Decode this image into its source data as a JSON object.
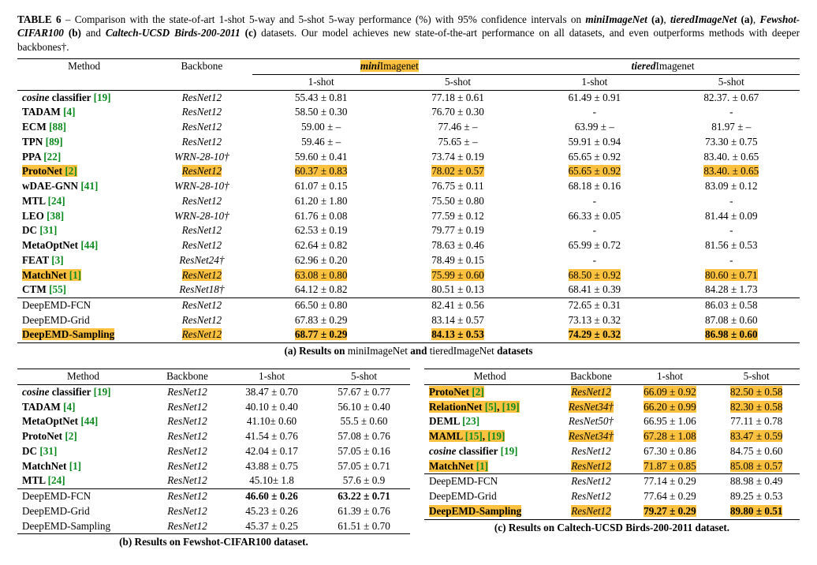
{
  "caption": {
    "label": "TABLE 6",
    "sep": " – ",
    "pre": "Comparison with the state-of-art 1-shot 5-way and 5-shot 5-way performance (%) with 95% confidence intervals on ",
    "ds1": "miniImageNet",
    "tag1": "(a)",
    "ds2": "tieredImageNet",
    "tag2": "(a)",
    "ds3": "Fewshot-CIFAR100",
    "tag3": "(b)",
    "ds4": "Caltech-UCSD Birds-200-2011",
    "tag4": "(c)",
    "post": " datasets. Our model achieves new state-of-the-art performance on all datasets, and even outperforms methods with deeper backbones†.",
    "comma": ", ",
    "and": " and "
  },
  "colors": {
    "highlight": "#fec240",
    "ref": "#0b8a1f"
  },
  "tableA": {
    "head": {
      "method": "Method",
      "backbone": "Backbone",
      "ds1_pre": "mini",
      "ds1_post": "Imagenet",
      "ds2_pre": "tiered",
      "ds2_post": "Imagenet",
      "c1": "1-shot",
      "c5": "5-shot"
    },
    "rows": [
      {
        "m_it": "cosine",
        "m_rest": " classifier ",
        "ref": "[19]",
        "bb": "ResNet12",
        "hl": false,
        "m1": "55.43 ± 0.81",
        "m5": "77.18 ± 0.61",
        "t1": "61.49 ± 0.91",
        "t5": "82.37. ± 0.67"
      },
      {
        "m_b": "TADAM ",
        "ref": "[4]",
        "bb": "ResNet12",
        "hl": false,
        "m1": "58.50 ± 0.30",
        "m5": "76.70 ± 0.30",
        "t1": "-",
        "t5": "-"
      },
      {
        "m_b": "ECM ",
        "ref": "[88]",
        "bb": "ResNet12",
        "hl": false,
        "m1": "59.00 ± –",
        "m5": "77.46 ± –",
        "t1": "63.99 ± –",
        "t5": "81.97 ± –"
      },
      {
        "m_b": "TPN ",
        "ref": "[89]",
        "bb": "ResNet12",
        "hl": false,
        "m1": "59.46 ± –",
        "m5": "75.65 ± –",
        "t1": "59.91 ± 0.94",
        "t5": "73.30 ± 0.75"
      },
      {
        "m_b": "PPA ",
        "ref": "[22]",
        "bb": "WRN-28-10†",
        "hl": false,
        "m1": "59.60 ± 0.41",
        "m5": "73.74 ± 0.19",
        "t1": "65.65 ± 0.92",
        "t5": "83.40. ± 0.65"
      },
      {
        "m_b": "ProtoNet ",
        "ref": "[2]",
        "bb": "ResNet12",
        "hl": true,
        "m1": "60.37 ± 0.83",
        "m5": "78.02 ± 0.57",
        "t1": "65.65 ± 0.92",
        "t5": "83.40. ± 0.65"
      },
      {
        "m_b": "wDAE-GNN ",
        "ref": "[41]",
        "bb": "WRN-28-10†",
        "hl": false,
        "m1": "61.07 ± 0.15",
        "m5": "76.75 ± 0.11",
        "t1": "68.18 ± 0.16",
        "t5": "83.09 ± 0.12"
      },
      {
        "m_b": "MTL ",
        "ref": "[24]",
        "bb": "ResNet12",
        "hl": false,
        "m1": "61.20 ± 1.80",
        "m5": "75.50 ± 0.80",
        "t1": "-",
        "t5": "-"
      },
      {
        "m_b": "LEO ",
        "ref": "[38]",
        "bb": "WRN-28-10†",
        "hl": false,
        "m1": "61.76 ± 0.08",
        "m5": "77.59 ± 0.12",
        "t1": "66.33 ± 0.05",
        "t5": "81.44 ± 0.09"
      },
      {
        "m_b": "DC ",
        "ref": "[31]",
        "bb": "ResNet12",
        "hl": false,
        "m1": "62.53 ± 0.19",
        "m5": "79.77 ± 0.19",
        "t1": "-",
        "t5": "-"
      },
      {
        "m_b": "MetaOptNet ",
        "ref": "[44]",
        "bb": "ResNet12",
        "hl": false,
        "m1": "62.64 ± 0.82",
        "m5": "78.63 ± 0.46",
        "t1": "65.99 ± 0.72",
        "t5": "81.56 ± 0.53"
      },
      {
        "m_b": "FEAT ",
        "ref": "[3]",
        "bb": "ResNet24†",
        "hl": false,
        "m1": "62.96 ± 0.20",
        "m5": "78.49 ± 0.15",
        "t1": "-",
        "t5": "-"
      },
      {
        "m_b": "MatchNet ",
        "ref": "[1]",
        "bb": "ResNet12",
        "hl": true,
        "m1": "63.08 ± 0.80",
        "m5": "75.99 ± 0.60",
        "t1": "68.50 ± 0.92",
        "t5": "80.60 ± 0.71"
      },
      {
        "m_b": "CTM ",
        "ref": "[55]",
        "bb": "ResNet18†",
        "hl": false,
        "m1": "64.12 ± 0.82",
        "m5": "80.51 ± 0.13",
        "t1": "68.41 ± 0.39",
        "t5": "84.28 ± 1.73"
      },
      {
        "m": "DeepEMD-FCN",
        "bb": "ResNet12",
        "hl": false,
        "sect": true,
        "m1": "66.50 ± 0.80",
        "m5": "82.41 ± 0.56",
        "t1": "72.65 ± 0.31",
        "t5": "86.03 ± 0.58"
      },
      {
        "m": "DeepEMD-Grid",
        "bb": "ResNet12",
        "hl": false,
        "m1": "67.83 ± 0.29",
        "m5": "83.14 ± 0.57",
        "t1": "73.13 ± 0.32",
        "t5": "87.08 ± 0.60"
      },
      {
        "m_b": "DeepEMD-Sampling",
        "bb": "ResNet12",
        "hl": true,
        "last": true,
        "m1": "68.77 ± 0.29",
        "m1b": true,
        "m5": "84.13 ± 0.53",
        "m5b": true,
        "t1": "74.29 ± 0.32",
        "t1b": true,
        "t5": "86.98 ± 0.60",
        "t5b": true
      }
    ],
    "subcap_pre": "(a) Results on ",
    "subcap_ds1": "miniImageNet",
    "subcap_and": " and ",
    "subcap_ds2": "tieredImageNet",
    "subcap_post": " datasets"
  },
  "tableB": {
    "head": {
      "method": "Method",
      "backbone": "Backbone",
      "c1": "1-shot",
      "c5": "5-shot"
    },
    "rows": [
      {
        "m_it": "cosine",
        "m_rest": " classifier ",
        "ref": "[19]",
        "bb": "ResNet12",
        "c1": "38.47 ± 0.70",
        "c5": "57.67 ± 0.77"
      },
      {
        "m_b": "TADAM ",
        "ref": "[4]",
        "bb": "ResNet12",
        "c1": "40.10 ± 0.40",
        "c5": "56.10 ± 0.40"
      },
      {
        "m_b": "MetaOptNet ",
        "ref": "[44]",
        "bb": "ResNet12",
        "c1": "41.10± 0.60",
        "c5": "55.5 ± 0.60"
      },
      {
        "m_b": "ProtoNet ",
        "ref": "[2]",
        "bb": "ResNet12",
        "c1": "41.54 ± 0.76",
        "c5": "57.08 ± 0.76"
      },
      {
        "m_b": "DC ",
        "ref": "[31]",
        "bb": "ResNet12",
        "c1": "42.04 ± 0.17",
        "c5": "57.05 ± 0.16"
      },
      {
        "m_b": "MatchNet ",
        "ref": "[1]",
        "bb": "ResNet12",
        "c1": "43.88 ± 0.75",
        "c5": "57.05 ± 0.71"
      },
      {
        "m_b": "MTL ",
        "ref": "[24]",
        "bb": "ResNet12",
        "c1": "45.10± 1.8",
        "c5": "57.6 ± 0.9"
      },
      {
        "m": "DeepEMD-FCN",
        "bb": "ResNet12",
        "sect": true,
        "c1": "46.60 ± 0.26",
        "c1b": true,
        "c5": "63.22 ± 0.71",
        "c5b": true
      },
      {
        "m": "DeepEMD-Grid",
        "bb": "ResNet12",
        "c1": "45.23 ± 0.26",
        "c5": "61.39 ± 0.76"
      },
      {
        "m": "DeepEMD-Sampling",
        "bb": "ResNet12",
        "last": true,
        "c1": "45.37 ± 0.25",
        "c5": "61.51 ± 0.70"
      }
    ],
    "subcap_pre": "(b) Results on ",
    "subcap_ds": "Fewshot-CIFAR100",
    "subcap_post": " dataset."
  },
  "tableC": {
    "head": {
      "method": "Method",
      "backbone": "Backbone",
      "c1": "1-shot",
      "c5": "5-shot"
    },
    "rows": [
      {
        "m_b": "ProtoNet ",
        "ref": "[2]",
        "bb": "ResNet12",
        "hl": true,
        "c1": "66.09 ± 0.92",
        "c5": "82.50 ± 0.58"
      },
      {
        "m_b": "RelationNet ",
        "ref": "[5]",
        "ref2": "[19]",
        "bb": "ResNet34†",
        "hl": true,
        "c1": "66.20 ± 0.99",
        "c5": "82.30 ± 0.58"
      },
      {
        "m_b": "DEML ",
        "ref": "[23]",
        "bb": "ResNet50†",
        "c1": "66.95 ± 1.06",
        "c5": "77.11 ± 0.78"
      },
      {
        "m_b": "MAML ",
        "ref": "[15]",
        "ref2": "[19]",
        "bb": "ResNet34†",
        "hl": true,
        "c1": "67.28 ± 1.08",
        "c5": "83.47 ± 0.59"
      },
      {
        "m_it": "cosine",
        "m_rest": " classifier ",
        "ref": "[19]",
        "bb": "ResNet12",
        "c1": "67.30 ± 0.86",
        "c5": "84.75 ± 0.60"
      },
      {
        "m_b": "MatchNet ",
        "ref": "[1]",
        "bb": "ResNet12",
        "hl": true,
        "c1": "71.87 ± 0.85",
        "c5": "85.08 ± 0.57"
      },
      {
        "m": "DeepEMD-FCN",
        "bb": "ResNet12",
        "sect": true,
        "c1": "77.14 ± 0.29",
        "c5": "88.98 ± 0.49"
      },
      {
        "m": "DeepEMD-Grid",
        "bb": "ResNet12",
        "c1": "77.64 ± 0.29",
        "c5": "89.25 ± 0.53"
      },
      {
        "m_b": "DeepEMD-Sampling",
        "bb": "ResNet12",
        "hl": true,
        "last": true,
        "c1": "79.27 ± 0.29",
        "c1b": true,
        "c5": "89.80 ± 0.51",
        "c5b": true
      }
    ],
    "subcap_pre": "(c) Results on ",
    "subcap_ds": "Caltech-UCSD Birds-200-2011",
    "subcap_post": " dataset."
  }
}
